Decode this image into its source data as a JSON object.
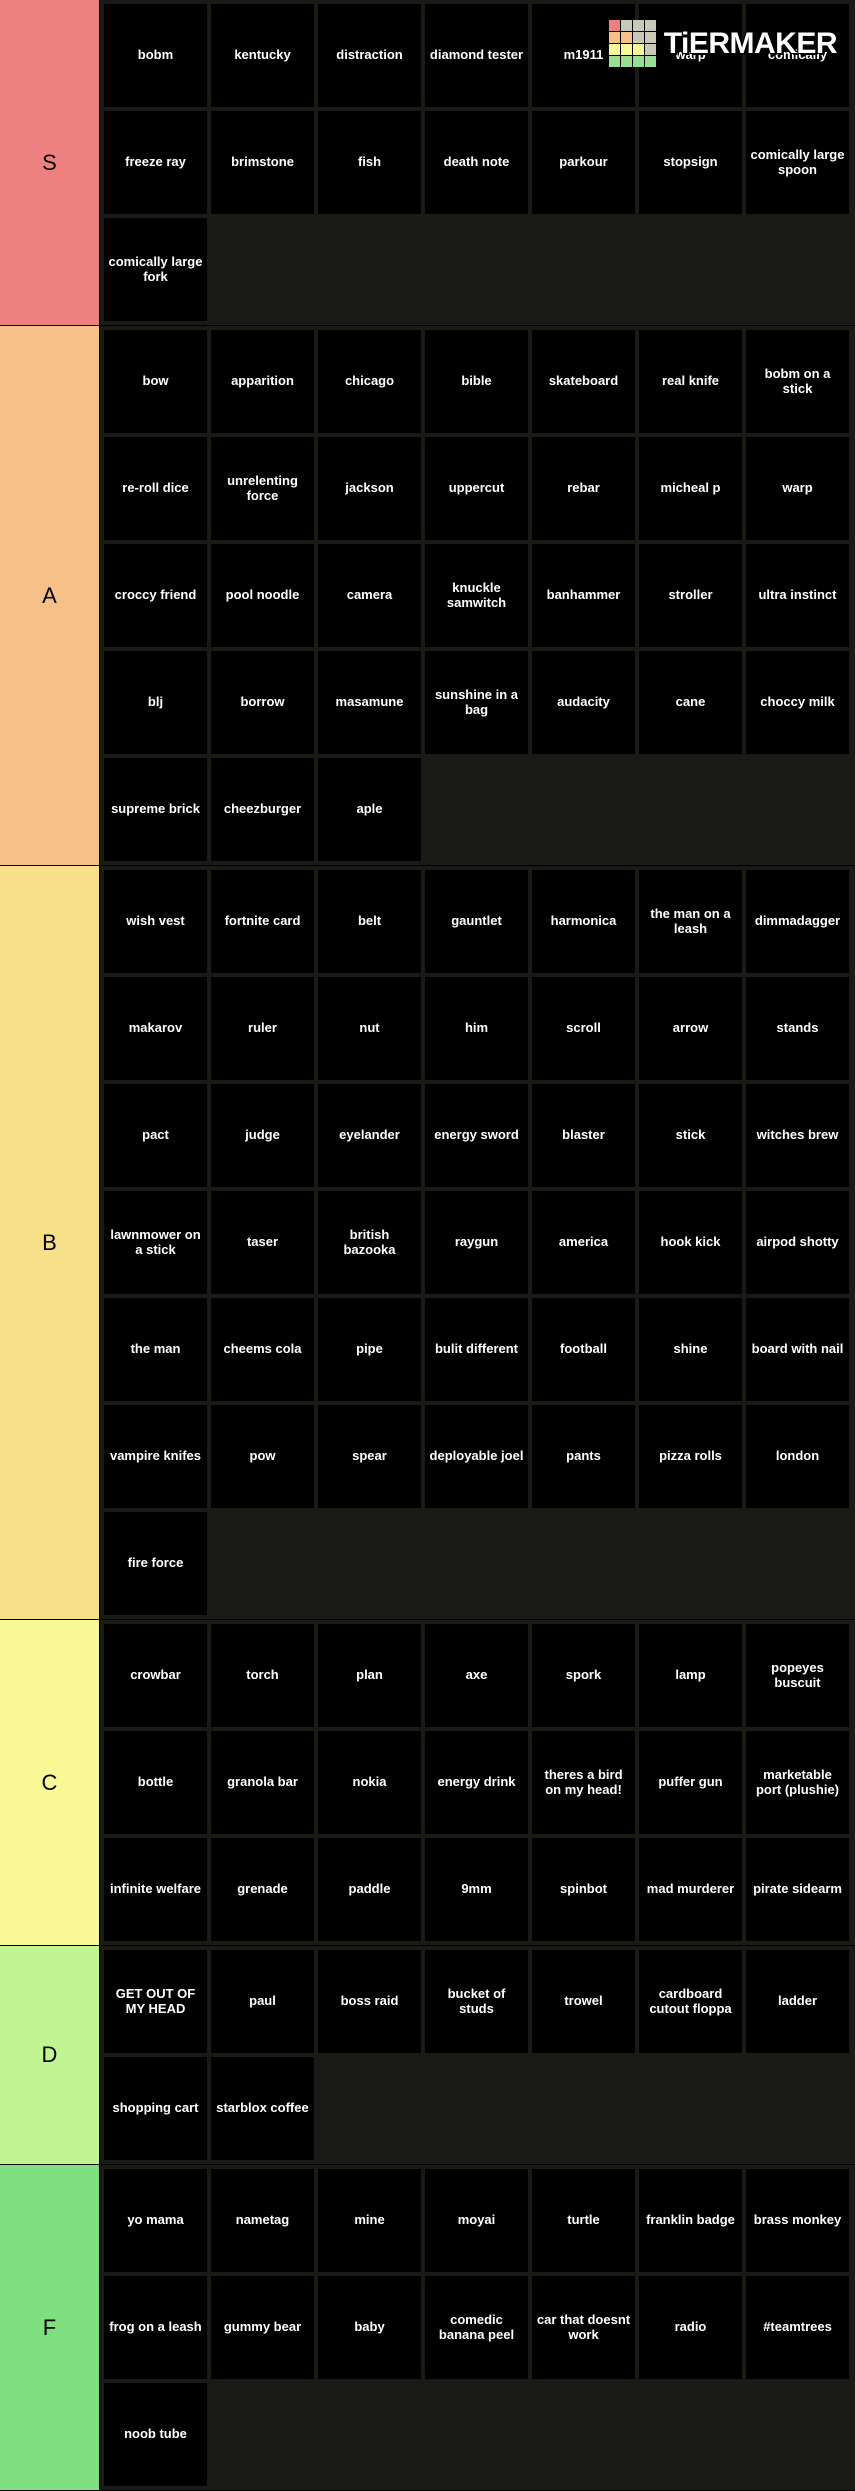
{
  "brand": {
    "name": "TiERMAKER"
  },
  "tiers": [
    {
      "label": "S",
      "color": "#ef8080",
      "items": [
        "bobm",
        "kentucky",
        "distraction",
        "diamond tester",
        "m1911",
        "warp",
        "comically",
        "freeze ray",
        "brimstone",
        "fish",
        "death note",
        "parkour",
        "stopsign",
        "comically large spoon",
        "comically large fork"
      ]
    },
    {
      "label": "A",
      "color": "#f5c189",
      "items": [
        "bow",
        "apparition",
        "chicago",
        "bible",
        "skateboard",
        "real knife",
        "bobm on a stick",
        "re-roll dice",
        "unrelenting force",
        "jackson",
        "uppercut",
        "rebar",
        "micheal p",
        "warp",
        "croccy friend",
        "pool noodle",
        "camera",
        "knuckle samwitch",
        "banhammer",
        "stroller",
        "ultra instinct",
        "blj",
        "borrow",
        "masamune",
        "sunshine in a bag",
        "audacity",
        "cane",
        "choccy milk",
        "supreme brick",
        "cheezburger",
        "aple"
      ]
    },
    {
      "label": "B",
      "color": "#f8df8a",
      "items": [
        "wish vest",
        "fortnite card",
        "belt",
        "gauntlet",
        "harmonica",
        "the man on a leash",
        "dimmadagger",
        "makarov",
        "ruler",
        "nut",
        "him",
        "scroll",
        "arrow",
        "stands",
        "pact",
        "judge",
        "eyelander",
        "energy sword",
        "blaster",
        "stick",
        "witches brew",
        "lawnmower on a stick",
        "taser",
        "british bazooka",
        "raygun",
        "america",
        "hook kick",
        "airpod shotty",
        "the man",
        "cheems cola",
        "pipe",
        "bulit different",
        "football",
        "shine",
        "board with nail",
        "vampire knifes",
        "pow",
        "spear",
        "deployable joel",
        "pants",
        "pizza rolls",
        "london",
        "fire force"
      ]
    },
    {
      "label": "C",
      "color": "#f8f896",
      "items": [
        "crowbar",
        "torch",
        "plan",
        "axe",
        "spork",
        "lamp",
        "popeyes buscuit",
        "bottle",
        "granola bar",
        "nokia",
        "energy drink",
        "theres a bird on my head!",
        "puffer gun",
        "marketable port (plushie)",
        "infinite welfare",
        "grenade",
        "paddle",
        "9mm",
        "spinbot",
        "mad murderer",
        "pirate sidearm"
      ]
    },
    {
      "label": "D",
      "color": "#c1f493",
      "items": [
        "GET OUT OF MY HEAD",
        "paul",
        "boss raid",
        "bucket of studs",
        "trowel",
        "cardboard cutout floppa",
        "ladder",
        "shopping cart",
        "starblox coffee"
      ]
    },
    {
      "label": "F",
      "color": "#80e080",
      "items": [
        "yo mama",
        "nametag",
        "mine",
        "moyai",
        "turtle",
        "franklin badge",
        "brass monkey",
        "frog on a leash",
        "gummy bear",
        "baby",
        "comedic banana peel",
        "car that doesnt work",
        "radio",
        "#teamtrees",
        "noob tube"
      ]
    }
  ]
}
